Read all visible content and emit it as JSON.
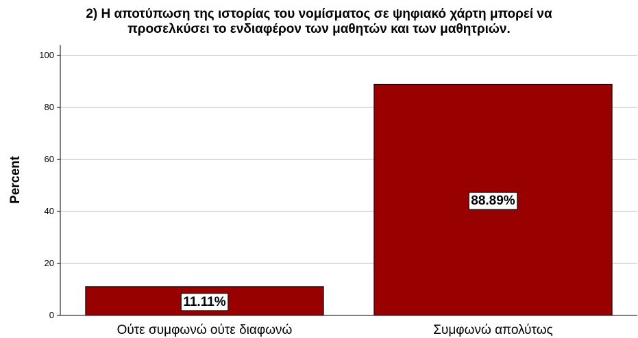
{
  "chart_data": {
    "type": "bar",
    "title_lines": [
      "2) Η αποτύπωση της ιστορίας του νομίσματος σε ψηφιακό χάρτη μπορεί να",
      "προσελκύσει το ενδιαφέρον των μαθητών και των μαθητριών."
    ],
    "categories": [
      "Ούτε συμφωνώ ούτε διαφωνώ",
      "Συμφωνώ απολύτως"
    ],
    "values": [
      11.11,
      88.89
    ],
    "data_labels": [
      "11.11%",
      "88.89%"
    ],
    "ylabel": "Percent",
    "ylim": [
      0,
      104
    ],
    "yticks": [
      0,
      20,
      40,
      60,
      80,
      100
    ],
    "grid": true,
    "legend": "none",
    "colors": {
      "bar": "#990000",
      "bar_stroke": "#000000",
      "grid": "#bdbdbd",
      "axis": "#000000"
    }
  }
}
